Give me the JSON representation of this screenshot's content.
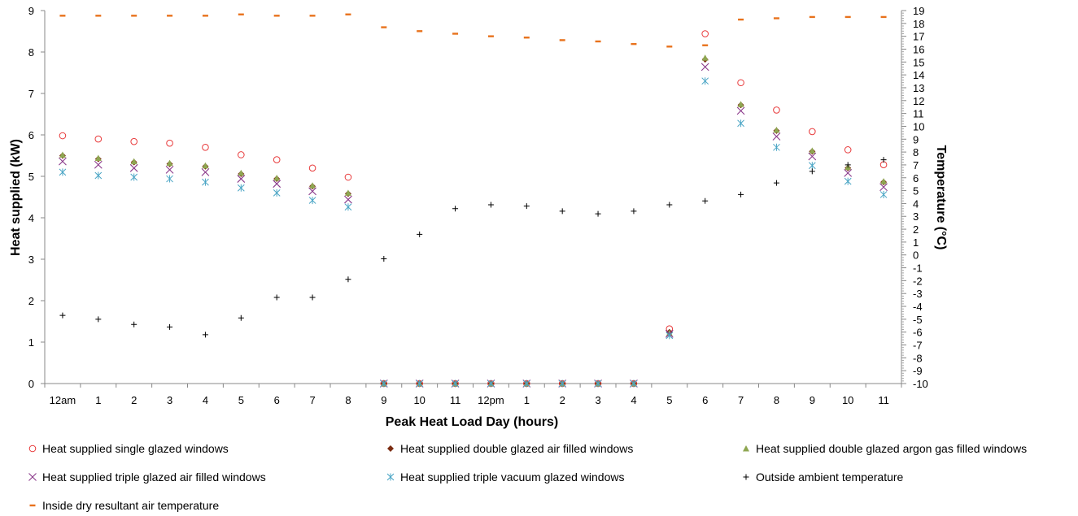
{
  "chart_data": {
    "type": "scatter",
    "x_categories": [
      "12am",
      "1",
      "2",
      "3",
      "4",
      "5",
      "6",
      "7",
      "8",
      "9",
      "10",
      "11",
      "12pm",
      "1",
      "2",
      "3",
      "4",
      "5",
      "6",
      "7",
      "8",
      "9",
      "10",
      "11"
    ],
    "xlabel": "Peak Heat Load Day  (hours)",
    "ylabel_left": "Heat  supplied (kW)",
    "ylabel_right": "Temperature (°C)",
    "ylim_left": [
      0,
      9
    ],
    "ylim_right": [
      -10,
      19
    ],
    "legend_position": "bottom",
    "series": [
      {
        "name": "Heat supplied single glazed windows",
        "axis": "left",
        "marker": "circle-open",
        "color": "#e8393a",
        "values": [
          5.98,
          5.9,
          5.84,
          5.8,
          5.7,
          5.52,
          5.4,
          5.2,
          4.98,
          0,
          0,
          0,
          0,
          0,
          0,
          0,
          0,
          1.32,
          8.44,
          7.26,
          6.6,
          6.08,
          5.64,
          5.28
        ]
      },
      {
        "name": "Heat supplied double glazed air filled windows",
        "axis": "left",
        "marker": "diamond",
        "color": "#7b2c12",
        "values": [
          5.5,
          5.42,
          5.34,
          5.3,
          5.24,
          5.06,
          4.94,
          4.76,
          4.58,
          0,
          0,
          0,
          0,
          0,
          0,
          0,
          0,
          1.24,
          7.82,
          6.72,
          6.1,
          5.6,
          5.2,
          4.86
        ]
      },
      {
        "name": "Heat supplied double glazed argon gas filled windows",
        "axis": "left",
        "marker": "triangle",
        "color": "#8ea651",
        "values": [
          5.52,
          5.44,
          5.36,
          5.32,
          5.26,
          5.08,
          4.96,
          4.78,
          4.6,
          0,
          0,
          0,
          0,
          0,
          0,
          0,
          0,
          1.22,
          7.86,
          6.74,
          6.12,
          5.62,
          5.22,
          4.88
        ]
      },
      {
        "name": "Heat supplied triple glazed air filled windows",
        "axis": "left",
        "marker": "x",
        "color": "#8b3a8b",
        "values": [
          5.36,
          5.28,
          5.2,
          5.16,
          5.1,
          4.94,
          4.82,
          4.64,
          4.44,
          0,
          0,
          0,
          0,
          0,
          0,
          0,
          0,
          1.2,
          7.64,
          6.58,
          5.96,
          5.48,
          5.08,
          4.74
        ]
      },
      {
        "name": "Heat supplied triple vacuum glazed windows",
        "axis": "left",
        "marker": "asterisk",
        "color": "#4aa5c5",
        "values": [
          5.1,
          5.02,
          4.98,
          4.94,
          4.86,
          4.72,
          4.6,
          4.42,
          4.26,
          0,
          0,
          0,
          0,
          0,
          0,
          0,
          0,
          1.16,
          7.3,
          6.28,
          5.7,
          5.26,
          4.88,
          4.56
        ]
      },
      {
        "name": "Outside ambient temperature",
        "axis": "right",
        "marker": "plus",
        "color": "#000000",
        "values": [
          -4.7,
          -5.0,
          -5.4,
          -5.6,
          -6.2,
          -4.9,
          -3.3,
          -3.3,
          -1.9,
          -0.3,
          1.6,
          3.6,
          3.9,
          3.8,
          3.4,
          3.2,
          3.4,
          3.9,
          4.2,
          4.7,
          5.6,
          6.5,
          7.0,
          7.4
        ]
      },
      {
        "name": "Inside dry resultant air temperature",
        "axis": "right",
        "marker": "dash",
        "color": "#e8721c",
        "values": [
          18.6,
          18.6,
          18.6,
          18.6,
          18.6,
          18.7,
          18.6,
          18.6,
          18.7,
          17.7,
          17.4,
          17.2,
          17.0,
          16.9,
          16.7,
          16.6,
          16.4,
          16.2,
          16.3,
          18.3,
          18.4,
          18.5,
          18.5,
          18.5
        ]
      }
    ]
  }
}
